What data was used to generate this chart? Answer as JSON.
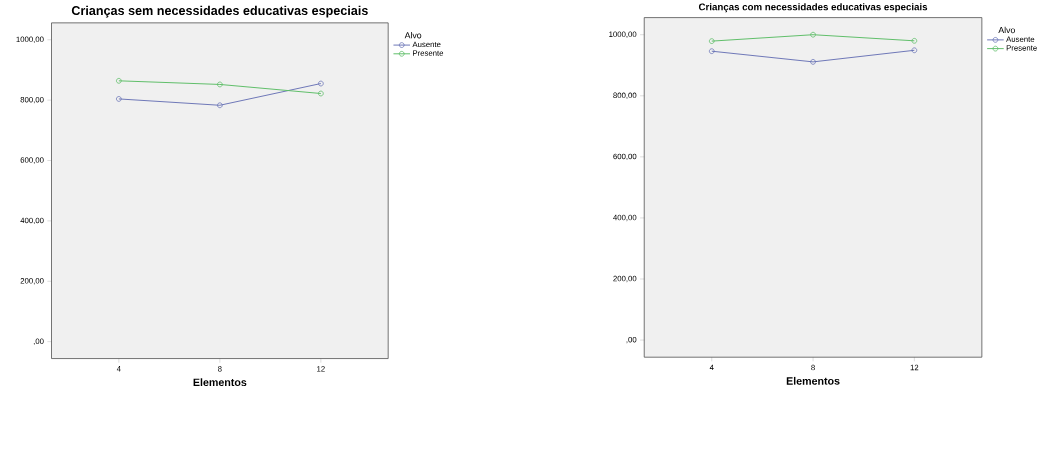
{
  "chart_data": [
    {
      "type": "line",
      "title": "Crianças sem necessidades educativas especiais",
      "xlabel": "Elementos",
      "legend_title": "Alvo",
      "legend": "right",
      "marker": "circle",
      "categories": [
        "4",
        "8",
        "12"
      ],
      "series": [
        {
          "name": "Ausente",
          "color": "#6a74b6",
          "values": [
            804,
            783,
            855
          ]
        },
        {
          "name": "Presente",
          "color": "#5cbd66",
          "values": [
            864,
            852,
            822
          ]
        }
      ],
      "ylim": [
        -56,
        1056
      ],
      "yticks": [
        {
          "value": 0,
          "label": ",00"
        },
        {
          "value": 200,
          "label": "200,00"
        },
        {
          "value": 400,
          "label": "400,00"
        },
        {
          "value": 600,
          "label": "600,00"
        },
        {
          "value": 800,
          "label": "800,00"
        },
        {
          "value": 1000,
          "label": "1000,00"
        }
      ]
    },
    {
      "type": "line",
      "title": "Crianças com necessidades educativas especiais",
      "xlabel": "Elementos",
      "legend_title": "Alvo",
      "legend": "right",
      "marker": "circle",
      "categories": [
        "4",
        "8",
        "12"
      ],
      "series": [
        {
          "name": "Ausente",
          "color": "#6a74b6",
          "values": [
            946,
            911,
            949
          ]
        },
        {
          "name": "Presente",
          "color": "#5cbd66",
          "values": [
            979,
            1000,
            980
          ]
        }
      ],
      "ylim": [
        -56,
        1056
      ],
      "yticks": [
        {
          "value": 0,
          "label": ",00"
        },
        {
          "value": 200,
          "label": "200,00"
        },
        {
          "value": 400,
          "label": "400,00"
        },
        {
          "value": 600,
          "label": "600,00"
        },
        {
          "value": 800,
          "label": "800,00"
        },
        {
          "value": 1000,
          "label": "1000,00"
        }
      ]
    }
  ]
}
